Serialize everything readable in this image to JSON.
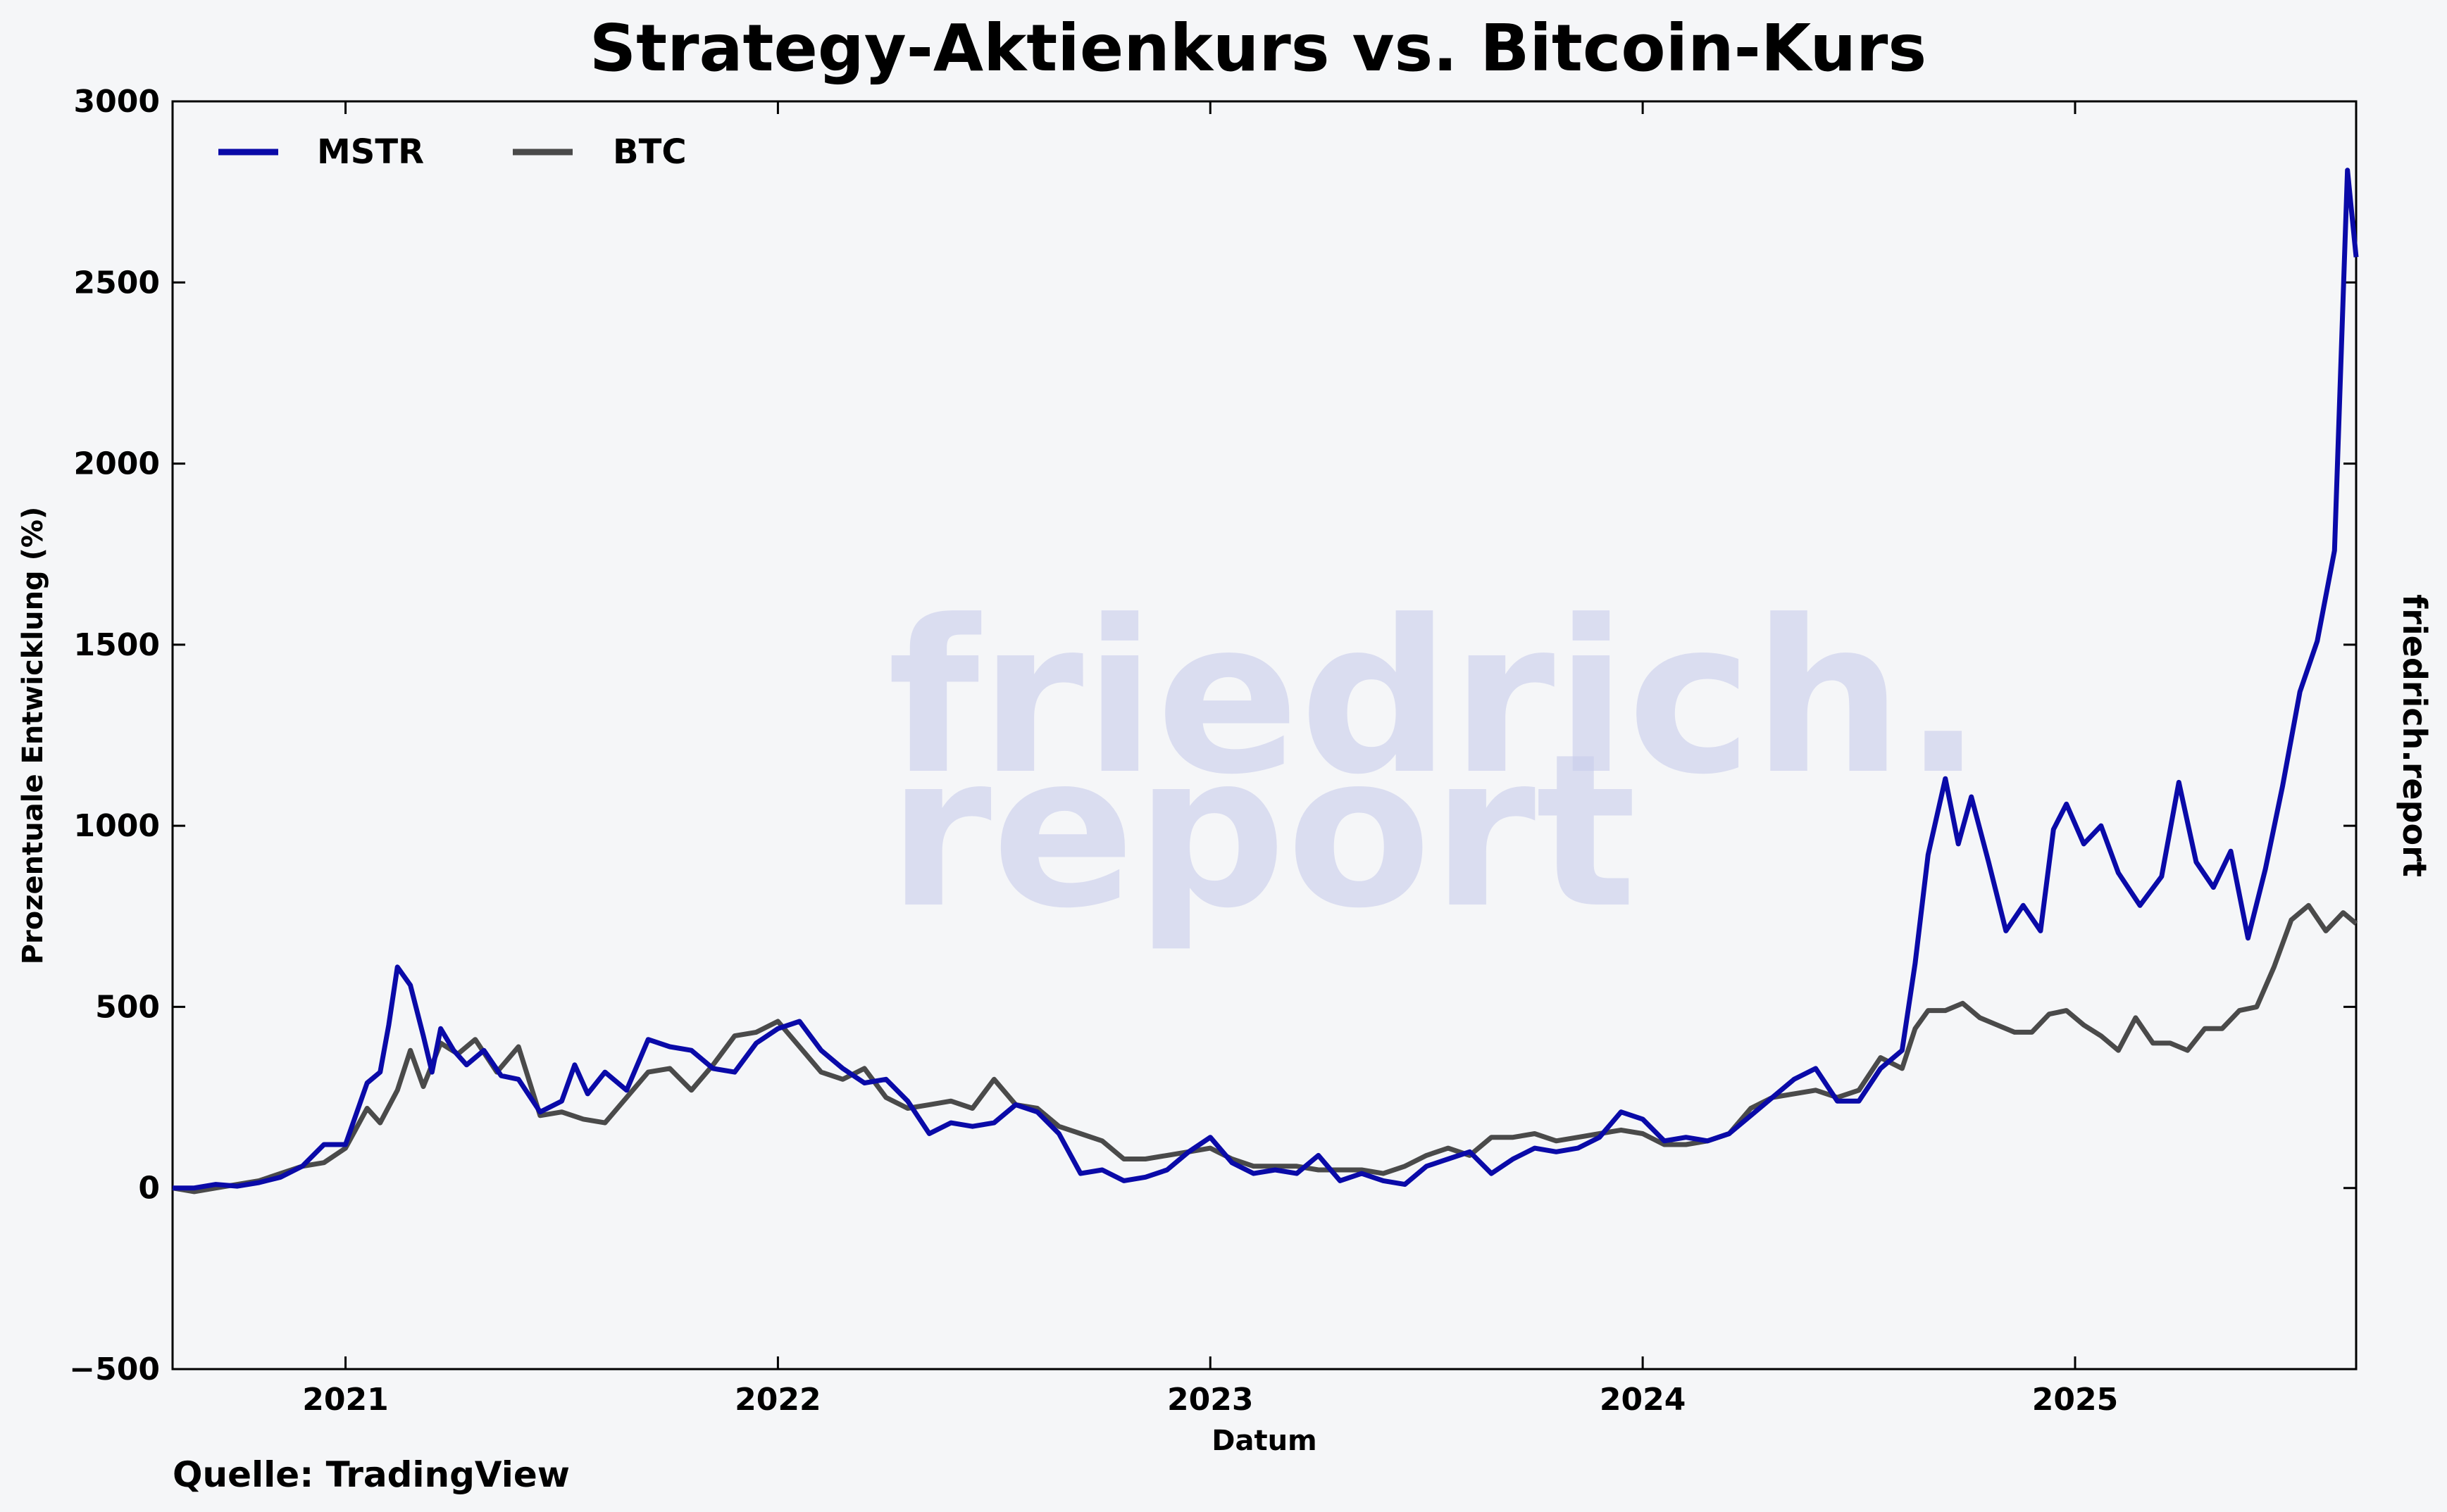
{
  "title": "Strategy-Aktienkurs vs. Bitcoin-Kurs",
  "source": "Quelle: TradingView",
  "side_brand": "friedrich.report",
  "watermark": {
    "line1": "friedrich.",
    "line2": "report"
  },
  "colors": {
    "MSTR": "#0a0aa8",
    "BTC": "#4a4a4a",
    "background": "#f5f6f8",
    "watermark": "#c9cdec"
  },
  "chart_data": {
    "type": "line",
    "title": "Strategy-Aktienkurs vs. Bitcoin-Kurs",
    "xlabel": "Datum",
    "ylabel": "Prozentuale Entwicklung (%)",
    "xlim": [
      2020.6,
      2025.65
    ],
    "ylim": [
      -500,
      3000
    ],
    "x_ticks": [
      2021,
      2022,
      2023,
      2024,
      2025
    ],
    "y_ticks": [
      -500,
      0,
      500,
      1000,
      1500,
      2000,
      2500,
      3000
    ],
    "x_tick_labels": [
      "2021",
      "2022",
      "2023",
      "2024",
      "2025"
    ],
    "y_tick_labels": [
      "−500",
      "0",
      "500",
      "1000",
      "1500",
      "2000",
      "2500",
      "3000"
    ],
    "legend": "top-left",
    "grid": false,
    "series": [
      {
        "name": "MSTR",
        "points": [
          [
            2020.6,
            0
          ],
          [
            2020.65,
            0
          ],
          [
            2020.7,
            10
          ],
          [
            2020.75,
            5
          ],
          [
            2020.8,
            15
          ],
          [
            2020.85,
            30
          ],
          [
            2020.9,
            60
          ],
          [
            2020.95,
            120
          ],
          [
            2021.0,
            120
          ],
          [
            2021.05,
            290
          ],
          [
            2021.08,
            320
          ],
          [
            2021.1,
            450
          ],
          [
            2021.12,
            610
          ],
          [
            2021.15,
            560
          ],
          [
            2021.18,
            420
          ],
          [
            2021.2,
            320
          ],
          [
            2021.22,
            440
          ],
          [
            2021.25,
            380
          ],
          [
            2021.28,
            340
          ],
          [
            2021.32,
            380
          ],
          [
            2021.36,
            310
          ],
          [
            2021.4,
            300
          ],
          [
            2021.45,
            210
          ],
          [
            2021.5,
            240
          ],
          [
            2021.53,
            340
          ],
          [
            2021.56,
            260
          ],
          [
            2021.6,
            320
          ],
          [
            2021.65,
            270
          ],
          [
            2021.7,
            410
          ],
          [
            2021.75,
            390
          ],
          [
            2021.8,
            380
          ],
          [
            2021.85,
            330
          ],
          [
            2021.9,
            320
          ],
          [
            2021.95,
            400
          ],
          [
            2022.0,
            440
          ],
          [
            2022.05,
            460
          ],
          [
            2022.1,
            380
          ],
          [
            2022.15,
            330
          ],
          [
            2022.2,
            290
          ],
          [
            2022.25,
            300
          ],
          [
            2022.3,
            240
          ],
          [
            2022.35,
            150
          ],
          [
            2022.4,
            180
          ],
          [
            2022.45,
            170
          ],
          [
            2022.5,
            180
          ],
          [
            2022.55,
            230
          ],
          [
            2022.6,
            210
          ],
          [
            2022.65,
            150
          ],
          [
            2022.7,
            40
          ],
          [
            2022.75,
            50
          ],
          [
            2022.8,
            20
          ],
          [
            2022.85,
            30
          ],
          [
            2022.9,
            50
          ],
          [
            2022.95,
            100
          ],
          [
            2023.0,
            140
          ],
          [
            2023.05,
            70
          ],
          [
            2023.1,
            40
          ],
          [
            2023.15,
            50
          ],
          [
            2023.2,
            40
          ],
          [
            2023.25,
            90
          ],
          [
            2023.3,
            20
          ],
          [
            2023.35,
            40
          ],
          [
            2023.4,
            20
          ],
          [
            2023.45,
            10
          ],
          [
            2023.5,
            60
          ],
          [
            2023.55,
            80
          ],
          [
            2023.6,
            100
          ],
          [
            2023.65,
            40
          ],
          [
            2023.7,
            80
          ],
          [
            2023.75,
            110
          ],
          [
            2023.8,
            100
          ],
          [
            2023.85,
            110
          ],
          [
            2023.9,
            140
          ],
          [
            2023.95,
            210
          ],
          [
            2024.0,
            190
          ],
          [
            2024.05,
            130
          ],
          [
            2024.1,
            140
          ],
          [
            2024.15,
            130
          ],
          [
            2024.2,
            150
          ],
          [
            2024.25,
            200
          ],
          [
            2024.3,
            250
          ],
          [
            2024.35,
            300
          ],
          [
            2024.4,
            330
          ],
          [
            2024.45,
            240
          ],
          [
            2024.5,
            240
          ],
          [
            2024.55,
            330
          ],
          [
            2024.6,
            380
          ],
          [
            2024.63,
            620
          ],
          [
            2024.66,
            920
          ],
          [
            2024.7,
            1130
          ],
          [
            2024.73,
            950
          ],
          [
            2024.76,
            1080
          ],
          [
            2024.8,
            900
          ],
          [
            2024.84,
            710
          ],
          [
            2024.88,
            780
          ],
          [
            2024.92,
            710
          ],
          [
            2024.95,
            990
          ],
          [
            2024.98,
            1060
          ],
          [
            2025.02,
            950
          ],
          [
            2025.06,
            1000
          ],
          [
            2025.1,
            870
          ],
          [
            2025.15,
            780
          ],
          [
            2025.2,
            860
          ],
          [
            2025.24,
            1120
          ],
          [
            2025.28,
            900
          ],
          [
            2025.32,
            830
          ],
          [
            2025.36,
            930
          ],
          [
            2025.4,
            690
          ],
          [
            2025.44,
            880
          ],
          [
            2025.48,
            1110
          ],
          [
            2025.52,
            1370
          ],
          [
            2025.56,
            1510
          ],
          [
            2025.6,
            1760
          ],
          [
            2025.63,
            2810
          ],
          [
            2025.65,
            2570
          ]
        ]
      },
      {
        "name": "BTC",
        "points": [
          [
            2020.6,
            0
          ],
          [
            2020.65,
            -10
          ],
          [
            2020.7,
            0
          ],
          [
            2020.75,
            10
          ],
          [
            2020.8,
            20
          ],
          [
            2020.85,
            40
          ],
          [
            2020.9,
            60
          ],
          [
            2020.95,
            70
          ],
          [
            2021.0,
            110
          ],
          [
            2021.05,
            220
          ],
          [
            2021.08,
            180
          ],
          [
            2021.12,
            270
          ],
          [
            2021.15,
            380
          ],
          [
            2021.18,
            280
          ],
          [
            2021.22,
            400
          ],
          [
            2021.26,
            370
          ],
          [
            2021.3,
            410
          ],
          [
            2021.35,
            320
          ],
          [
            2021.4,
            390
          ],
          [
            2021.45,
            200
          ],
          [
            2021.5,
            210
          ],
          [
            2021.55,
            190
          ],
          [
            2021.6,
            180
          ],
          [
            2021.65,
            250
          ],
          [
            2021.7,
            320
          ],
          [
            2021.75,
            330
          ],
          [
            2021.8,
            270
          ],
          [
            2021.85,
            340
          ],
          [
            2021.9,
            420
          ],
          [
            2021.95,
            430
          ],
          [
            2022.0,
            460
          ],
          [
            2022.05,
            390
          ],
          [
            2022.1,
            320
          ],
          [
            2022.15,
            300
          ],
          [
            2022.2,
            330
          ],
          [
            2022.25,
            250
          ],
          [
            2022.3,
            220
          ],
          [
            2022.35,
            230
          ],
          [
            2022.4,
            240
          ],
          [
            2022.45,
            220
          ],
          [
            2022.5,
            300
          ],
          [
            2022.55,
            230
          ],
          [
            2022.6,
            220
          ],
          [
            2022.65,
            170
          ],
          [
            2022.7,
            150
          ],
          [
            2022.75,
            130
          ],
          [
            2022.8,
            80
          ],
          [
            2022.85,
            80
          ],
          [
            2022.9,
            90
          ],
          [
            2022.95,
            100
          ],
          [
            2023.0,
            110
          ],
          [
            2023.05,
            80
          ],
          [
            2023.1,
            60
          ],
          [
            2023.15,
            60
          ],
          [
            2023.2,
            60
          ],
          [
            2023.25,
            50
          ],
          [
            2023.3,
            50
          ],
          [
            2023.35,
            50
          ],
          [
            2023.4,
            40
          ],
          [
            2023.45,
            60
          ],
          [
            2023.5,
            90
          ],
          [
            2023.55,
            110
          ],
          [
            2023.6,
            90
          ],
          [
            2023.65,
            140
          ],
          [
            2023.7,
            140
          ],
          [
            2023.75,
            150
          ],
          [
            2023.8,
            130
          ],
          [
            2023.85,
            140
          ],
          [
            2023.9,
            150
          ],
          [
            2023.95,
            160
          ],
          [
            2024.0,
            150
          ],
          [
            2024.05,
            120
          ],
          [
            2024.1,
            120
          ],
          [
            2024.15,
            130
          ],
          [
            2024.2,
            150
          ],
          [
            2024.25,
            220
          ],
          [
            2024.3,
            250
          ],
          [
            2024.35,
            260
          ],
          [
            2024.4,
            270
          ],
          [
            2024.45,
            250
          ],
          [
            2024.5,
            270
          ],
          [
            2024.55,
            360
          ],
          [
            2024.6,
            330
          ],
          [
            2024.63,
            440
          ],
          [
            2024.66,
            490
          ],
          [
            2024.7,
            490
          ],
          [
            2024.74,
            510
          ],
          [
            2024.78,
            470
          ],
          [
            2024.82,
            450
          ],
          [
            2024.86,
            430
          ],
          [
            2024.9,
            430
          ],
          [
            2024.94,
            480
          ],
          [
            2024.98,
            490
          ],
          [
            2025.02,
            450
          ],
          [
            2025.06,
            420
          ],
          [
            2025.1,
            380
          ],
          [
            2025.14,
            470
          ],
          [
            2025.18,
            400
          ],
          [
            2025.22,
            400
          ],
          [
            2025.26,
            380
          ],
          [
            2025.3,
            440
          ],
          [
            2025.34,
            440
          ],
          [
            2025.38,
            490
          ],
          [
            2025.42,
            500
          ],
          [
            2025.46,
            610
          ],
          [
            2025.5,
            740
          ],
          [
            2025.54,
            780
          ],
          [
            2025.58,
            710
          ],
          [
            2025.62,
            760
          ],
          [
            2025.65,
            730
          ]
        ]
      }
    ]
  }
}
